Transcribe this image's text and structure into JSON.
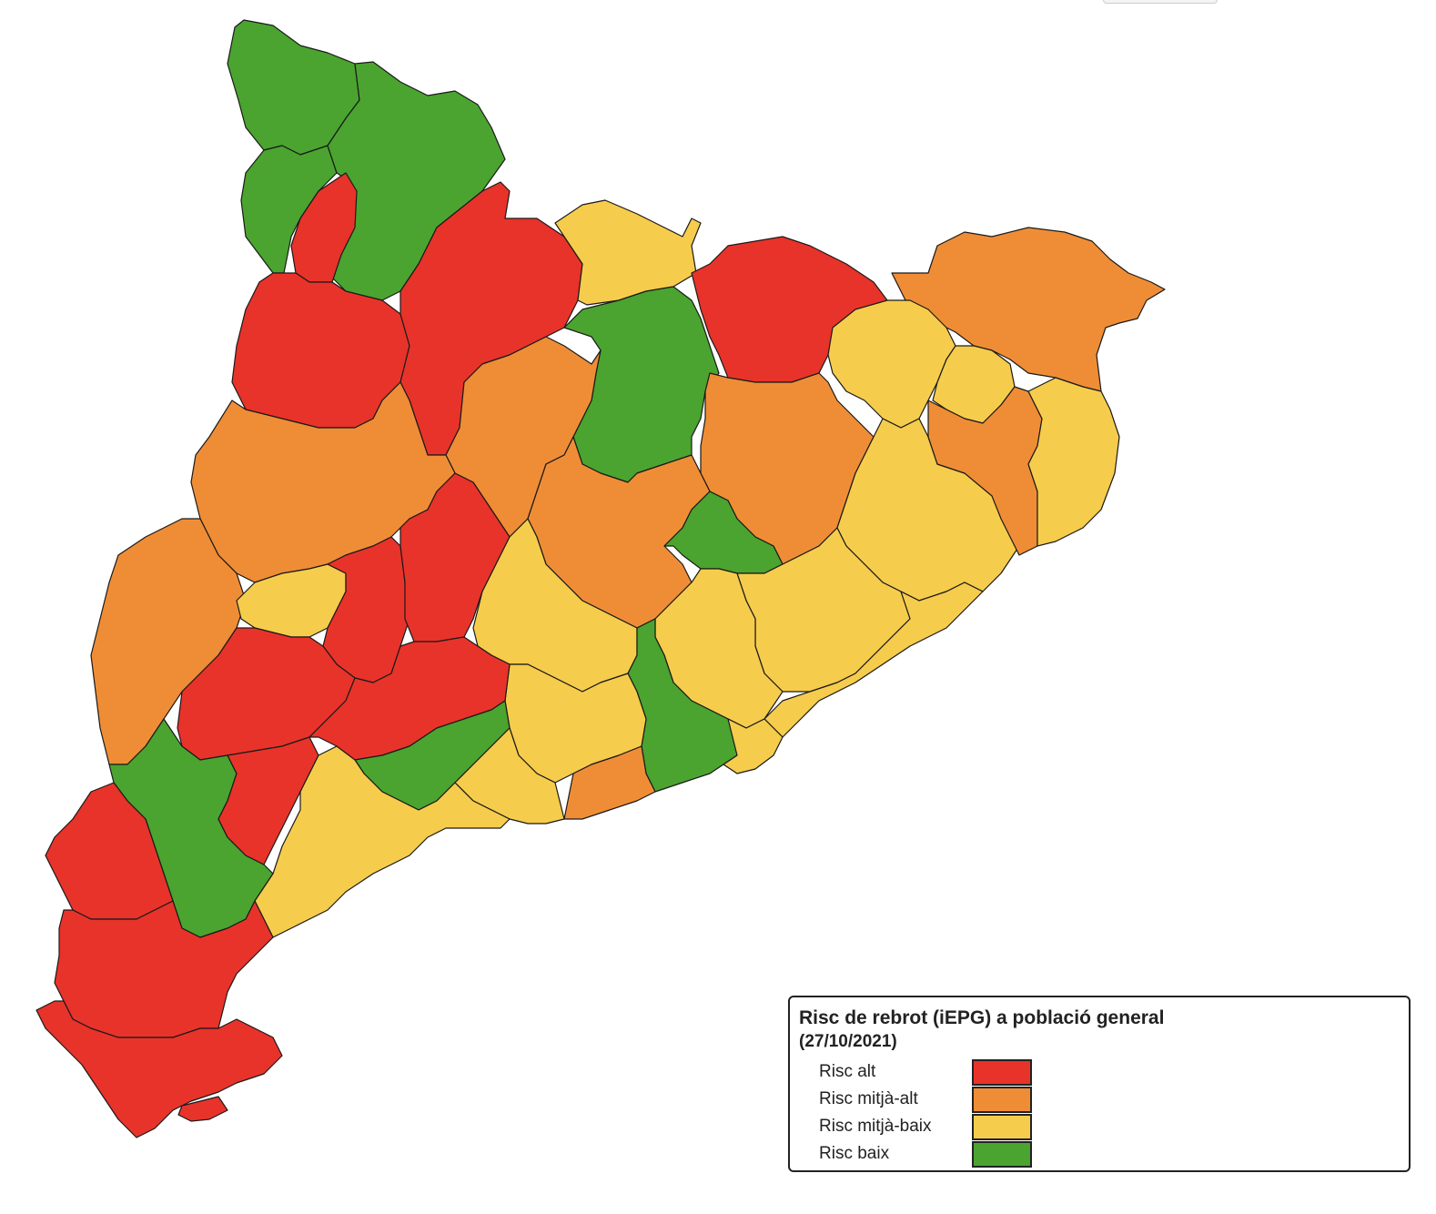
{
  "map": {
    "title": "Risc de rebrot (iEPG) a població general",
    "date": "(27/10/2021)",
    "risk_colors": {
      "alt": "#e8332a",
      "mitja_alt": "#ef8d36",
      "mitja_baix": "#f6cc4c",
      "baix": "#4aa42f"
    },
    "border_color": "#1a1a1a"
  },
  "legend": {
    "items": [
      {
        "label": "Risc alt",
        "color": "#e8332a"
      },
      {
        "label": "Risc mitjà-alt",
        "color": "#ef8d36"
      },
      {
        "label": "Risc mitjà-baix",
        "color": "#f6cc4c"
      },
      {
        "label": "Risc baix",
        "color": "#4aa42f"
      }
    ]
  }
}
